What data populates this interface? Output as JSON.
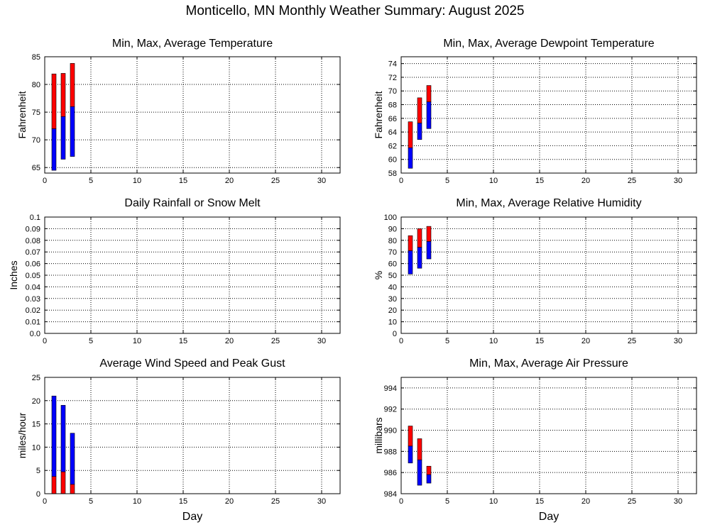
{
  "page_title": "Monticello, MN Monthly Weather Summary: August 2025",
  "colors": {
    "upper_segment": "#ff0000",
    "lower_segment": "#0000ff"
  },
  "chart_data": [
    {
      "id": "temperature",
      "type": "bar",
      "title": "Min, Max, Average Temperature",
      "ylabel": "Fahrenheit",
      "xlabel": "",
      "xlim": [
        0,
        32
      ],
      "ylim": [
        64,
        85
      ],
      "xticks": [
        0,
        5,
        10,
        15,
        20,
        25,
        30
      ],
      "yticks": [
        65,
        70,
        75,
        80,
        85
      ],
      "grid": true,
      "x": [
        1,
        2,
        3
      ],
      "series": [
        {
          "values": [
            [
              72.0,
              81.9
            ],
            [
              74.2,
              82.0
            ],
            [
              76.0,
              83.8
            ]
          ],
          "color": "#ff0000"
        },
        {
          "values": [
            [
              64.5,
              72.0
            ],
            [
              66.5,
              74.2
            ],
            [
              67.0,
              76.0
            ]
          ],
          "color": "#0000ff"
        }
      ]
    },
    {
      "id": "dewpoint",
      "type": "bar",
      "title": "Min, Max, Average Dewpoint Temperature",
      "ylabel": "Fahrenheit",
      "xlabel": "",
      "xlim": [
        0,
        32
      ],
      "ylim": [
        58,
        75
      ],
      "xticks": [
        0,
        5,
        10,
        15,
        20,
        25,
        30
      ],
      "yticks": [
        58,
        60,
        62,
        64,
        66,
        68,
        70,
        72,
        74
      ],
      "grid": true,
      "x": [
        1,
        2,
        3
      ],
      "series": [
        {
          "values": [
            [
              61.7,
              65.5
            ],
            [
              65.3,
              69.0
            ],
            [
              68.4,
              70.8
            ]
          ],
          "color": "#ff0000"
        },
        {
          "values": [
            [
              58.7,
              61.7
            ],
            [
              62.9,
              65.3
            ],
            [
              64.5,
              68.4
            ]
          ],
          "color": "#0000ff"
        }
      ]
    },
    {
      "id": "rainfall",
      "type": "bar",
      "title": "Daily Rainfall or Snow Melt",
      "ylabel": "Inches",
      "xlabel": "",
      "xlim": [
        0,
        32
      ],
      "ylim": [
        0,
        0.1
      ],
      "xticks": [
        0,
        5,
        10,
        15,
        20,
        25,
        30
      ],
      "yticks": [
        0,
        0.01,
        0.02,
        0.03,
        0.04,
        0.05,
        0.06,
        0.07,
        0.08,
        0.09,
        0.1
      ],
      "ytick_labels": [
        "0.0",
        "0.01",
        "0.02",
        "0.03",
        "0.04",
        "0.05",
        "0.06",
        "0.07",
        "0.08",
        "0.09",
        "0.1"
      ],
      "grid": true,
      "x": [],
      "series": []
    },
    {
      "id": "humidity",
      "type": "bar",
      "title": "Min, Max, Average Relative Humidity",
      "ylabel": "%",
      "xlabel": "",
      "xlim": [
        0,
        32
      ],
      "ylim": [
        0,
        100
      ],
      "xticks": [
        0,
        5,
        10,
        15,
        20,
        25,
        30
      ],
      "yticks": [
        0,
        10,
        20,
        30,
        40,
        50,
        60,
        70,
        80,
        90,
        100
      ],
      "grid": true,
      "x": [
        1,
        2,
        3
      ],
      "series": [
        {
          "values": [
            [
              71,
              84
            ],
            [
              74,
              90
            ],
            [
              79,
              92
            ]
          ],
          "color": "#ff0000"
        },
        {
          "values": [
            [
              51,
              71
            ],
            [
              56,
              74
            ],
            [
              64,
              79
            ]
          ],
          "color": "#0000ff"
        }
      ]
    },
    {
      "id": "wind",
      "type": "bar",
      "title": "Average Wind Speed and Peak Gust",
      "ylabel": "miles/hour",
      "xlabel": "Day",
      "xlim": [
        0,
        32
      ],
      "ylim": [
        0,
        25
      ],
      "xticks": [
        0,
        5,
        10,
        15,
        20,
        25,
        30
      ],
      "yticks": [
        0,
        5,
        10,
        15,
        20,
        25
      ],
      "grid": true,
      "x": [
        1,
        2,
        3
      ],
      "series": [
        {
          "values": [
            [
              3.7,
              21.0
            ],
            [
              4.7,
              19.0
            ],
            [
              2.0,
              13.0
            ]
          ],
          "color": "#0000ff"
        },
        {
          "values": [
            [
              0,
              3.7
            ],
            [
              0,
              4.7
            ],
            [
              0,
              2.0
            ]
          ],
          "color": "#ff0000"
        }
      ]
    },
    {
      "id": "pressure",
      "type": "bar",
      "title": "Min, Max, Average Air Pressure",
      "ylabel": "millibars",
      "xlabel": "Day",
      "xlim": [
        0,
        32
      ],
      "ylim": [
        984,
        995
      ],
      "xticks": [
        0,
        5,
        10,
        15,
        20,
        25,
        30
      ],
      "yticks": [
        984,
        986,
        988,
        990,
        992,
        994
      ],
      "grid": true,
      "x": [
        1,
        2,
        3
      ],
      "series": [
        {
          "values": [
            [
              988.5,
              990.4
            ],
            [
              987.2,
              989.2
            ],
            [
              985.8,
              986.6
            ]
          ],
          "color": "#ff0000"
        },
        {
          "values": [
            [
              986.9,
              988.5
            ],
            [
              984.8,
              987.2
            ],
            [
              985.0,
              985.8
            ]
          ],
          "color": "#0000ff"
        }
      ]
    }
  ]
}
